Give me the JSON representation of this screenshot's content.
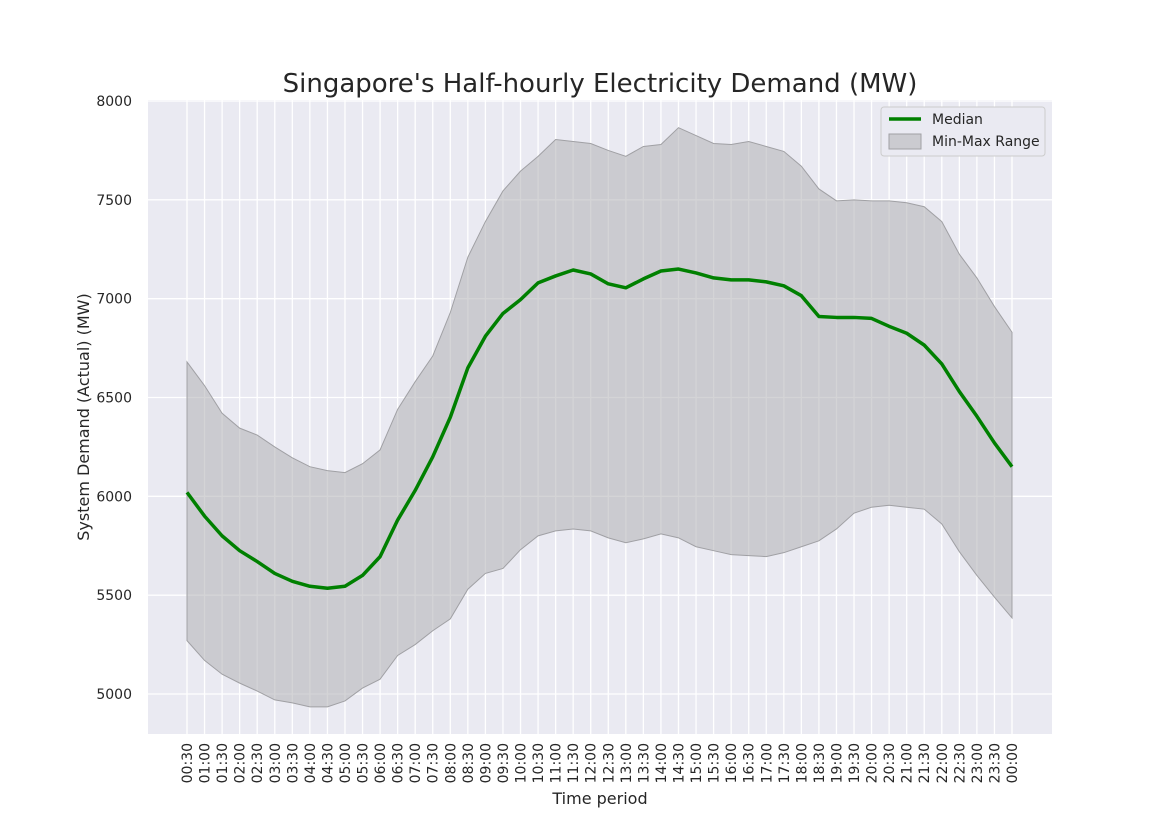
{
  "chart_data": {
    "type": "line",
    "title": "Singapore's Half-hourly Electricity Demand (MW)",
    "xlabel": "Time period",
    "ylabel": "System Demand (Actual) (MW)",
    "ylim": [
      4800,
      8000
    ],
    "yticks": [
      5000,
      5500,
      6000,
      6500,
      7000,
      7500,
      8000
    ],
    "grid": true,
    "legend_position": "top-right",
    "categories": [
      "00:30",
      "01:00",
      "01:30",
      "02:00",
      "02:30",
      "03:00",
      "03:30",
      "04:00",
      "04:30",
      "05:00",
      "05:30",
      "06:00",
      "06:30",
      "07:00",
      "07:30",
      "08:00",
      "08:30",
      "09:00",
      "09:30",
      "10:00",
      "10:30",
      "11:00",
      "11:30",
      "12:00",
      "12:30",
      "13:00",
      "13:30",
      "14:00",
      "14:30",
      "15:00",
      "15:30",
      "16:00",
      "16:30",
      "17:00",
      "17:30",
      "18:00",
      "18:30",
      "19:00",
      "19:30",
      "20:00",
      "20:30",
      "21:00",
      "21:30",
      "22:00",
      "22:30",
      "23:00",
      "23:30",
      "00:00"
    ],
    "series": [
      {
        "name": "Median",
        "color": "#008000",
        "values": [
          6020,
          5900,
          5800,
          5725,
          5670,
          5610,
          5570,
          5545,
          5535,
          5545,
          5600,
          5695,
          5880,
          6030,
          6200,
          6400,
          6650,
          6810,
          6925,
          6995,
          7080,
          7115,
          7145,
          7125,
          7075,
          7055,
          7100,
          7140,
          7150,
          7130,
          7105,
          7095,
          7095,
          7085,
          7065,
          7015,
          6910,
          6905,
          6905,
          6900,
          6860,
          6825,
          6765,
          6670,
          6530,
          6405,
          6270,
          6150
        ]
      }
    ],
    "range_band": {
      "name": "Min-Max Range",
      "color": "#b0b0b4",
      "min": [
        5270,
        5170,
        5100,
        5055,
        5015,
        4970,
        4955,
        4935,
        4935,
        4965,
        5030,
        5075,
        5195,
        5250,
        5320,
        5380,
        5530,
        5610,
        5635,
        5730,
        5800,
        5825,
        5835,
        5825,
        5790,
        5765,
        5785,
        5810,
        5790,
        5745,
        5725,
        5705,
        5700,
        5695,
        5715,
        5745,
        5775,
        5835,
        5915,
        5945,
        5955,
        5945,
        5935,
        5860,
        5720,
        5600,
        5490,
        5385
      ],
      "max": [
        6680,
        6560,
        6420,
        6345,
        6310,
        6250,
        6195,
        6150,
        6130,
        6120,
        6165,
        6235,
        6440,
        6580,
        6710,
        6930,
        7210,
        7390,
        7545,
        7645,
        7720,
        7805,
        7795,
        7785,
        7750,
        7720,
        7770,
        7780,
        7865,
        7825,
        7785,
        7780,
        7795,
        7770,
        7745,
        7670,
        7555,
        7495,
        7500,
        7495,
        7495,
        7485,
        7465,
        7390,
        7225,
        7105,
        6960,
        6830
      ]
    }
  }
}
